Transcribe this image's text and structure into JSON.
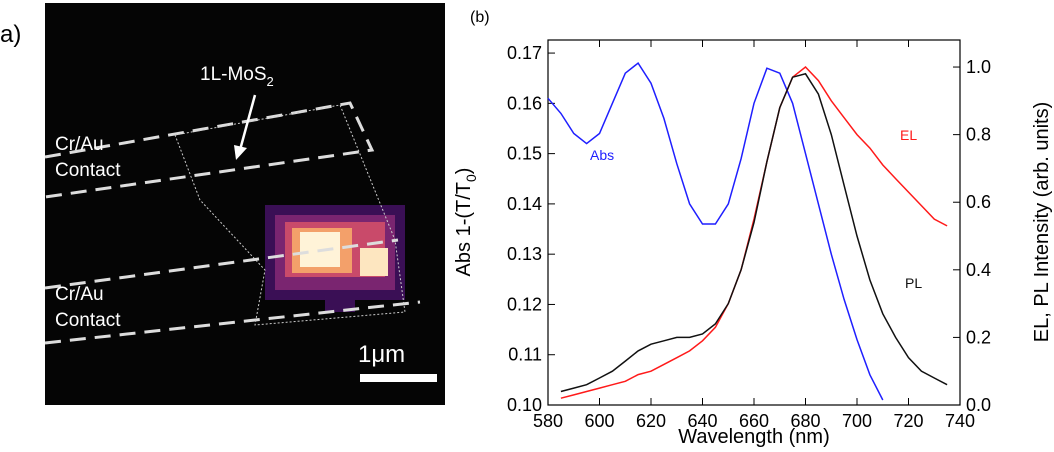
{
  "panel_a": {
    "label": "a)",
    "material": [
      "1L-MoS",
      "2"
    ],
    "contact_top": [
      "Cr/Au",
      "Contact"
    ],
    "contact_bottom": [
      "Cr/Au",
      "Contact"
    ],
    "scale_bar": "1μm"
  },
  "chart_data": {
    "type": "line",
    "panel_label": "(b)",
    "xlabel": "Wavelength (nm)",
    "ylabel": [
      "Abs 1-(T/T",
      "0",
      ")"
    ],
    "y2label": "EL, PL Intensity (arb. units)",
    "xlim": [
      580,
      740
    ],
    "xticks": [
      580,
      600,
      620,
      640,
      660,
      680,
      700,
      720,
      740
    ],
    "ylim": [
      0.1,
      0.1726
    ],
    "yticks": [
      {
        "value": 0.1,
        "label": "0.10"
      },
      0.11,
      0.12,
      0.13,
      0.14,
      0.15,
      0.16,
      0.17
    ],
    "y2lim": [
      0,
      1.08
    ],
    "y2ticks": [
      {
        "value": 0,
        "label": "0.0"
      },
      0.2,
      0.4,
      0.6,
      0.8,
      {
        "value": 1,
        "label": "1.0"
      }
    ],
    "x": [
      580,
      585,
      590,
      595,
      600,
      605,
      610,
      615,
      620,
      625,
      630,
      635,
      640,
      645,
      650,
      655,
      660,
      665,
      670,
      675,
      680,
      685,
      690,
      695,
      700,
      705,
      710,
      715,
      720,
      725,
      730,
      735
    ],
    "series": [
      {
        "name": "Abs",
        "color": "#1f1fff",
        "axis": "y",
        "values": [
          0.161,
          0.158,
          0.154,
          0.152,
          0.154,
          0.16,
          0.166,
          0.168,
          0.164,
          0.157,
          0.148,
          0.14,
          0.136,
          0.136,
          0.14,
          0.149,
          0.16,
          0.167,
          0.166,
          0.16,
          0.15,
          0.14,
          0.13,
          0.121,
          0.113,
          0.106,
          0.101,
          null,
          null,
          null,
          null,
          null
        ]
      },
      {
        "name": "EL",
        "color": "#ff1a1a",
        "axis": "y2",
        "values": [
          null,
          0.02,
          0.03,
          0.04,
          0.05,
          0.06,
          0.07,
          0.09,
          0.1,
          0.12,
          0.14,
          0.16,
          0.19,
          0.23,
          0.3,
          0.4,
          0.55,
          0.72,
          0.88,
          0.97,
          1.0,
          0.96,
          0.9,
          0.85,
          0.8,
          0.76,
          0.71,
          0.67,
          0.63,
          0.59,
          0.55,
          0.53
        ]
      },
      {
        "name": "PL",
        "color": "#111111",
        "axis": "y2",
        "values": [
          null,
          0.04,
          0.05,
          0.06,
          0.08,
          0.1,
          0.13,
          0.16,
          0.18,
          0.19,
          0.2,
          0.2,
          0.21,
          0.24,
          0.3,
          0.4,
          0.54,
          0.72,
          0.88,
          0.97,
          0.98,
          0.92,
          0.8,
          0.65,
          0.5,
          0.37,
          0.27,
          0.2,
          0.14,
          0.1,
          0.08,
          0.06
        ]
      }
    ]
  }
}
